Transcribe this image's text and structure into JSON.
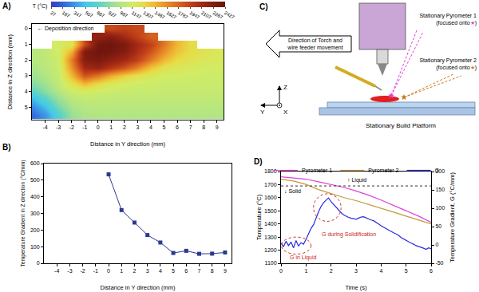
{
  "chart_data": [
    {
      "panel": "A)",
      "type": "heatmap",
      "xlabel": "Distance in Y direction (mm)",
      "ylabel": "Distance in Z direction (mm)",
      "annotation": "← Deposition direction",
      "x": [
        -5,
        -4,
        -3,
        -2,
        -1,
        0,
        1,
        2,
        3,
        4,
        5,
        6,
        7,
        8,
        9
      ],
      "y": [
        0,
        0.5,
        1,
        1.5,
        2,
        2.5,
        3,
        3.5,
        4,
        4.5,
        5,
        5.5
      ],
      "cells": [
        [
          null,
          null,
          null,
          null,
          null,
          null,
          1900,
          1950,
          1900,
          null,
          null,
          null,
          null,
          null,
          null
        ],
        [
          null,
          null,
          null,
          null,
          null,
          2200,
          2250,
          2100,
          1950,
          1800,
          null,
          null,
          null,
          null,
          null
        ],
        [
          null,
          null,
          1150,
          1250,
          1900,
          2350,
          2400,
          2300,
          2100,
          1950,
          1700,
          1450,
          1300,
          null,
          null
        ],
        [
          1000,
          1050,
          1150,
          1500,
          2300,
          2400,
          2350,
          2250,
          2050,
          1850,
          1600,
          1400,
          1300,
          1250,
          1200
        ],
        [
          1000,
          1040,
          1120,
          1700,
          2250,
          2300,
          2200,
          2100,
          1950,
          1700,
          1450,
          1300,
          1250,
          1200,
          1180
        ],
        [
          950,
          1020,
          1100,
          1600,
          2100,
          2150,
          2000,
          1850,
          1650,
          1400,
          1250,
          1200,
          1180,
          1150,
          1150
        ],
        [
          900,
          980,
          1080,
          1450,
          1850,
          1700,
          1500,
          1350,
          1250,
          1200,
          1150,
          1150,
          1130,
          1120,
          1120
        ],
        [
          800,
          920,
          1050,
          1250,
          1450,
          1300,
          1200,
          1150,
          1130,
          1120,
          1100,
          1100,
          1100,
          1100,
          1100
        ],
        [
          650,
          820,
          980,
          1100,
          1150,
          1120,
          1100,
          1090,
          1080,
          1080,
          1080,
          1080,
          1080,
          1080,
          1080
        ],
        [
          450,
          650,
          880,
          1020,
          1060,
          1060,
          1050,
          1050,
          1050,
          1050,
          1050,
          1050,
          1050,
          1050,
          1050
        ],
        [
          300,
          480,
          750,
          950,
          1000,
          1010,
          1010,
          1010,
          1010,
          1010,
          1010,
          1010,
          1010,
          1010,
          1010
        ],
        [
          200,
          350,
          620,
          880,
          960,
          980,
          980,
          980,
          980,
          980,
          980,
          980,
          980,
          980,
          980
        ]
      ],
      "colorbar": {
        "title": "T (°C)",
        "range": [
          27,
          2427
        ],
        "ticks": [
          27,
          187,
          347,
          507,
          667,
          827,
          987,
          1147,
          1307,
          1467,
          1627,
          1787,
          1947,
          2107,
          2267,
          2427
        ]
      },
      "xlim": [
        -5,
        9.5
      ],
      "xticks": [
        -4,
        -3,
        -2,
        -1,
        0,
        1,
        2,
        3,
        4,
        5,
        6,
        7,
        8,
        9
      ],
      "ylim": [
        5.8,
        -0.3
      ],
      "yticks": [
        0,
        1,
        2,
        3,
        4,
        5
      ],
      "grid": false
    },
    {
      "panel": "B)",
      "type": "line",
      "xlabel": "Distance in Y direction (mm)",
      "ylabel": "Temperature Gradient in Z direction (°C/mm)",
      "x": [
        0,
        1,
        2,
        3,
        4,
        5,
        6,
        7,
        8,
        9
      ],
      "series": [
        {
          "color": "#2b3990",
          "marker": "square",
          "line_style": "solid",
          "values": [
            535,
            320,
            245,
            170,
            125,
            62,
            75,
            57,
            58,
            65
          ]
        }
      ],
      "xlim": [
        -5,
        9.5
      ],
      "xticks": [
        -4,
        -3,
        -2,
        -1,
        0,
        1,
        2,
        3,
        4,
        5,
        6,
        7,
        8,
        9
      ],
      "ylim": [
        0,
        600
      ],
      "yticks": [
        0,
        100,
        200,
        300,
        400,
        500,
        600
      ],
      "grid": false
    },
    {
      "panel": "D)",
      "type": "line",
      "xlabel": "Time (s)",
      "ylabel": "Temperature (°C)",
      "y2label": "Temperature Gradient, G (°C/mm)",
      "series": [
        {
          "name": "Pyrometer 1",
          "color": "#e040d8",
          "line_style": "solid",
          "x": [
            0,
            0.5,
            1,
            1.5,
            2,
            2.5,
            3,
            3.5,
            4,
            4.5,
            5,
            5.5,
            6
          ],
          "values": [
            1760,
            1752,
            1742,
            1722,
            1702,
            1680,
            1652,
            1620,
            1582,
            1542,
            1502,
            1460,
            1412
          ]
        },
        {
          "name": "Pyrometer 2",
          "color": "#c09a3c",
          "line_style": "solid",
          "x": [
            0,
            0.5,
            1,
            1.5,
            2,
            2.5,
            3,
            3.5,
            4,
            4.5,
            5,
            5.5,
            6
          ],
          "values": [
            1742,
            1728,
            1702,
            1662,
            1632,
            1602,
            1578,
            1550,
            1520,
            1490,
            1460,
            1430,
            1400
          ]
        },
        {
          "name": "G",
          "color": "#2a2ae0",
          "line_style": "solid",
          "axis": "y2",
          "x": [
            0,
            0.1,
            0.2,
            0.3,
            0.4,
            0.5,
            0.6,
            0.7,
            0.8,
            0.9,
            1,
            1.1,
            1.2,
            1.3,
            1.4,
            1.5,
            1.6,
            1.7,
            1.8,
            1.9,
            2,
            2.1,
            2.2,
            2.3,
            2.4,
            2.5,
            2.6,
            2.7,
            2.8,
            2.9,
            3,
            3.1,
            3.2,
            3.3,
            3.4,
            3.5,
            3.6,
            3.7,
            3.8,
            3.9,
            4,
            4.1,
            4.2,
            4.3,
            4.4,
            4.5,
            4.6,
            4.7,
            4.8,
            4.9,
            5,
            5.1,
            5.2,
            5.3,
            5.4,
            5.5,
            5.6,
            5.7,
            5.8,
            5.9,
            6
          ],
          "values": [
            5,
            -5,
            10,
            -2,
            8,
            -8,
            12,
            -3,
            6,
            2,
            15,
            30,
            45,
            55,
            75,
            90,
            105,
            115,
            122,
            128,
            118,
            110,
            102,
            96,
            88,
            82,
            78,
            75,
            73,
            72,
            70,
            73,
            76,
            77,
            74,
            70,
            68,
            66,
            62,
            57,
            52,
            48,
            44,
            40,
            36,
            33,
            30,
            26,
            20,
            16,
            12,
            9,
            5,
            2,
            -2,
            -4,
            -6,
            -9,
            -12,
            -8,
            -10
          ]
        }
      ],
      "reference_line": {
        "y": 1690,
        "line_style": "dotted"
      },
      "annotations": [
        "↓ Solid",
        "↑ Liquid",
        "G during Solidification",
        "G in Liquid"
      ],
      "xlim": [
        0,
        6
      ],
      "xticks": [
        0,
        1,
        2,
        3,
        4,
        5,
        6
      ],
      "ylim": [
        1100,
        1800
      ],
      "yticks": [
        1100,
        1200,
        1300,
        1400,
        1500,
        1600,
        1700,
        1800
      ],
      "y2lim": [
        -50,
        200
      ],
      "y2ticks": [
        -50,
        0,
        50,
        100,
        150,
        200
      ],
      "legend": "top",
      "grid": false
    }
  ],
  "diagram": {
    "panel": "C)",
    "movement": [
      "Direction of Torch and",
      "wire feeder movement"
    ],
    "pyrometer1": [
      "Stationary Pyrometer 1",
      "(focused onto★)"
    ],
    "pyrometer2": [
      "Stationary Pyrometer 2",
      "(focused onto★)"
    ],
    "platform": "Stationary Build Platform",
    "axes": {
      "z": "Z",
      "y": "Y",
      "x": "X"
    }
  }
}
